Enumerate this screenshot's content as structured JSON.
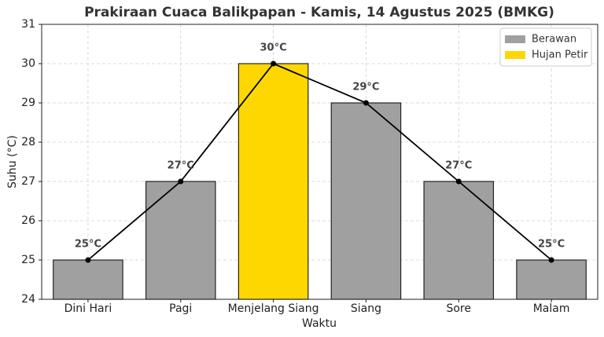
{
  "chart_data": {
    "type": "bar",
    "title": "Prakiraan Cuaca Balikpapan - Kamis, 14 Agustus 2025 (BMKG)",
    "xlabel": "Waktu",
    "ylabel": "Suhu (°C)",
    "categories": [
      "Dini Hari",
      "Pagi",
      "Menjelang Siang",
      "Siang",
      "Sore",
      "Malam"
    ],
    "values": [
      25,
      27,
      30,
      29,
      27,
      25
    ],
    "value_labels": [
      "25°C",
      "27°C",
      "30°C",
      "29°C",
      "27°C",
      "25°C"
    ],
    "colors": [
      "#a0a0a0",
      "#a0a0a0",
      "#ffd700",
      "#a0a0a0",
      "#a0a0a0",
      "#a0a0a0"
    ],
    "line_color": "#000000",
    "legend": [
      {
        "name": "Berawan",
        "color": "#a0a0a0"
      },
      {
        "name": "Hujan Petir",
        "color": "#ffd700"
      }
    ],
    "legend_position": "upper right",
    "ylim": [
      24,
      31
    ],
    "yticks": [
      24,
      25,
      26,
      27,
      28,
      29,
      30,
      31
    ],
    "grid": true
  }
}
